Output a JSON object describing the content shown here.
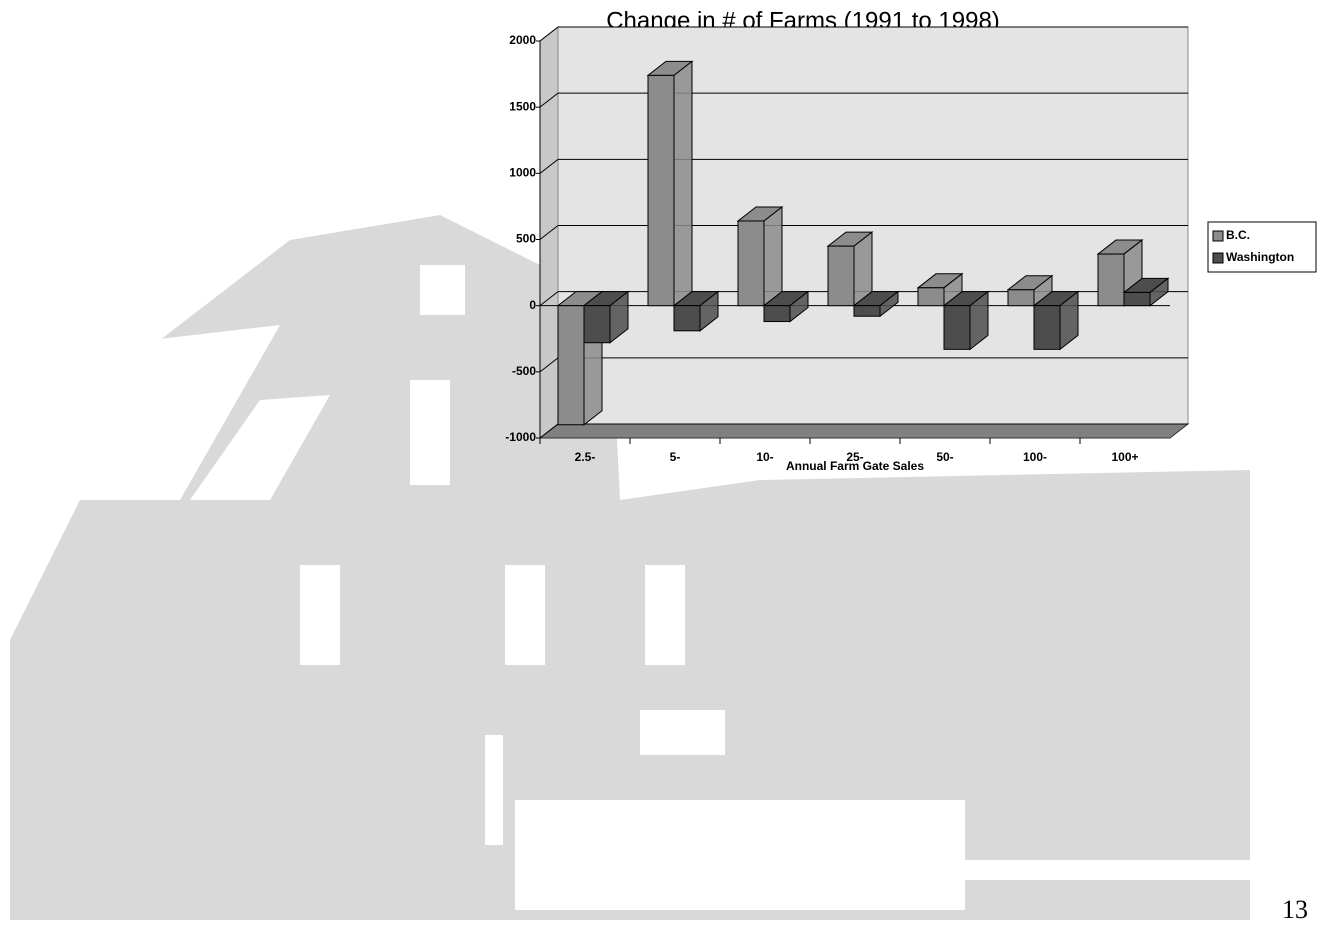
{
  "chart_data": {
    "type": "bar3d",
    "title": "Change in # of Farms (1991 to 1998)",
    "x_label": "Annual Farm Gate Sales",
    "categories": [
      "2.5-",
      "5-",
      "10-",
      "25-",
      "50-",
      "100-",
      "100+"
    ],
    "series": [
      {
        "name": "B.C.",
        "color": "#8c8c8c",
        "values": [
          -900,
          1740,
          640,
          450,
          135,
          120,
          390
        ]
      },
      {
        "name": "Washington",
        "color": "#4d4d4d",
        "values": [
          -280,
          -190,
          -120,
          -80,
          -330,
          -330,
          100
        ]
      }
    ],
    "ylim": [
      -1000,
      2000
    ],
    "yticks": [
      -1000,
      -500,
      0,
      500,
      1000,
      1500,
      2000
    ],
    "grid": true,
    "legend": "right"
  },
  "page_number": "13"
}
